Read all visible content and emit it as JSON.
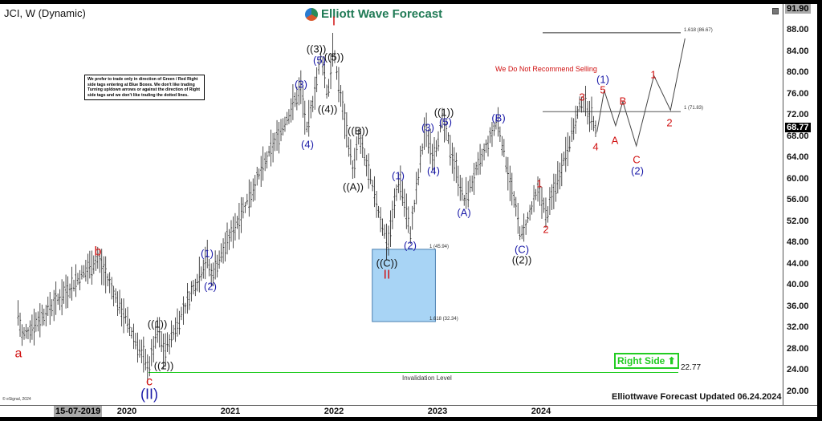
{
  "header": {
    "symbol_title": "JCI, W (Dynamic)",
    "logo_text": "Elliott Wave Forecast",
    "footer": "Elliottwave Forecast Updated 06.24.2024",
    "copyright": "© eSignal, 2024"
  },
  "note": "We prefer to trade only in direction of Green / Red Right side tags entering at Blue Boxes. We don't like trading Turning up/down arrows or against the direction of Right side tags and we don't like trading the dotted lines.",
  "recommendation": "We Do Not Recommend Selling",
  "right_side_tag": "Right Side",
  "invalidation": {
    "label": "Invalidation Level",
    "value": "22.77"
  },
  "fib": {
    "box_top": "1 (45.94)",
    "box_bottom": "1.618 (32.34)",
    "target_1": "1 (71.83)",
    "target_1618": "1.618 (86.67)"
  },
  "colors": {
    "blue_box": "#a8d4f5",
    "green": "#22cc22",
    "wave_red": "#d01010",
    "wave_blue": "#1a1aa8"
  },
  "chart_data": {
    "type": "ohlc-bar",
    "title": "JCI, W (Dynamic)",
    "ylim": [
      19,
      92
    ],
    "y_ticks": [
      "88.00",
      "84.00",
      "80.00",
      "76.00",
      "72.00",
      "68.00",
      "64.00",
      "60.00",
      "56.00",
      "52.00",
      "48.00",
      "44.00",
      "40.00",
      "36.00",
      "32.00",
      "28.00",
      "24.00",
      "20.00"
    ],
    "last_price": "68.77",
    "high_marker": "91.90",
    "x_ticks": [
      "2020",
      "2021",
      "2022",
      "2023",
      "2024"
    ],
    "cursor_date": "15-07-2019",
    "pivots": [
      {
        "t": 2018.95,
        "p": 34,
        "label": ""
      },
      {
        "t": 2018.99,
        "p": 29.5,
        "label": "a"
      },
      {
        "t": 2019.72,
        "p": 44.3,
        "label": "b"
      },
      {
        "t": 2020.21,
        "p": 23.5,
        "label": "c (II)"
      },
      {
        "t": 2020.3,
        "p": 31,
        "label": "((1))"
      },
      {
        "t": 2020.36,
        "p": 26.5,
        "label": "((2))"
      },
      {
        "t": 2020.78,
        "p": 44.6,
        "label": "(1)"
      },
      {
        "t": 2020.81,
        "p": 40.8,
        "label": "(2)"
      },
      {
        "t": 2021.68,
        "p": 76.2,
        "label": "(3)"
      },
      {
        "t": 2021.74,
        "p": 68,
        "label": "(4)"
      },
      {
        "t": 2021.88,
        "p": 82.6,
        "label": "(5) ((3))"
      },
      {
        "t": 2021.94,
        "p": 74.7,
        "label": "((4))"
      },
      {
        "t": 2021.99,
        "p": 83.5,
        "label": "((5)) I"
      },
      {
        "t": 2022.19,
        "p": 60.4,
        "label": "((A))"
      },
      {
        "t": 2022.24,
        "p": 67.2,
        "label": "((B))"
      },
      {
        "t": 2022.52,
        "p": 46.8,
        "label": "((C)) II"
      },
      {
        "t": 2022.63,
        "p": 59.6,
        "label": "(1)"
      },
      {
        "t": 2022.74,
        "p": 49,
        "label": "(2)"
      },
      {
        "t": 2022.88,
        "p": 68.7,
        "label": "(3)"
      },
      {
        "t": 2022.96,
        "p": 63.4,
        "label": "(4)"
      },
      {
        "t": 2023.05,
        "p": 70.2,
        "label": "(5) ((1))"
      },
      {
        "t": 2023.26,
        "p": 55.1,
        "label": "(A)"
      },
      {
        "t": 2023.58,
        "p": 70.2,
        "label": "(B)"
      },
      {
        "t": 2023.81,
        "p": 48.3,
        "label": "(C) ((2))"
      },
      {
        "t": 2023.98,
        "p": 57.4,
        "label": "1"
      },
      {
        "t": 2024.05,
        "p": 52.1,
        "label": "2"
      },
      {
        "t": 2024.4,
        "p": 74.3,
        "label": "3"
      },
      {
        "t": 2024.54,
        "p": 68.77,
        "label": "4"
      }
    ],
    "projection": [
      {
        "t": 2024.54,
        "p": 68,
        "label": "4"
      },
      {
        "t": 2024.61,
        "p": 75.8,
        "label": "5 (1)"
      },
      {
        "t": 2024.72,
        "p": 69.2,
        "label": "A"
      },
      {
        "t": 2024.79,
        "p": 73.7,
        "label": "B"
      },
      {
        "t": 2024.92,
        "p": 65.4,
        "label": "C (2)"
      },
      {
        "t": 2025.09,
        "p": 78.6,
        "label": "1"
      },
      {
        "t": 2025.25,
        "p": 72.1,
        "label": "2"
      },
      {
        "t": 2025.39,
        "p": 85.6,
        "label": ""
      }
    ]
  }
}
